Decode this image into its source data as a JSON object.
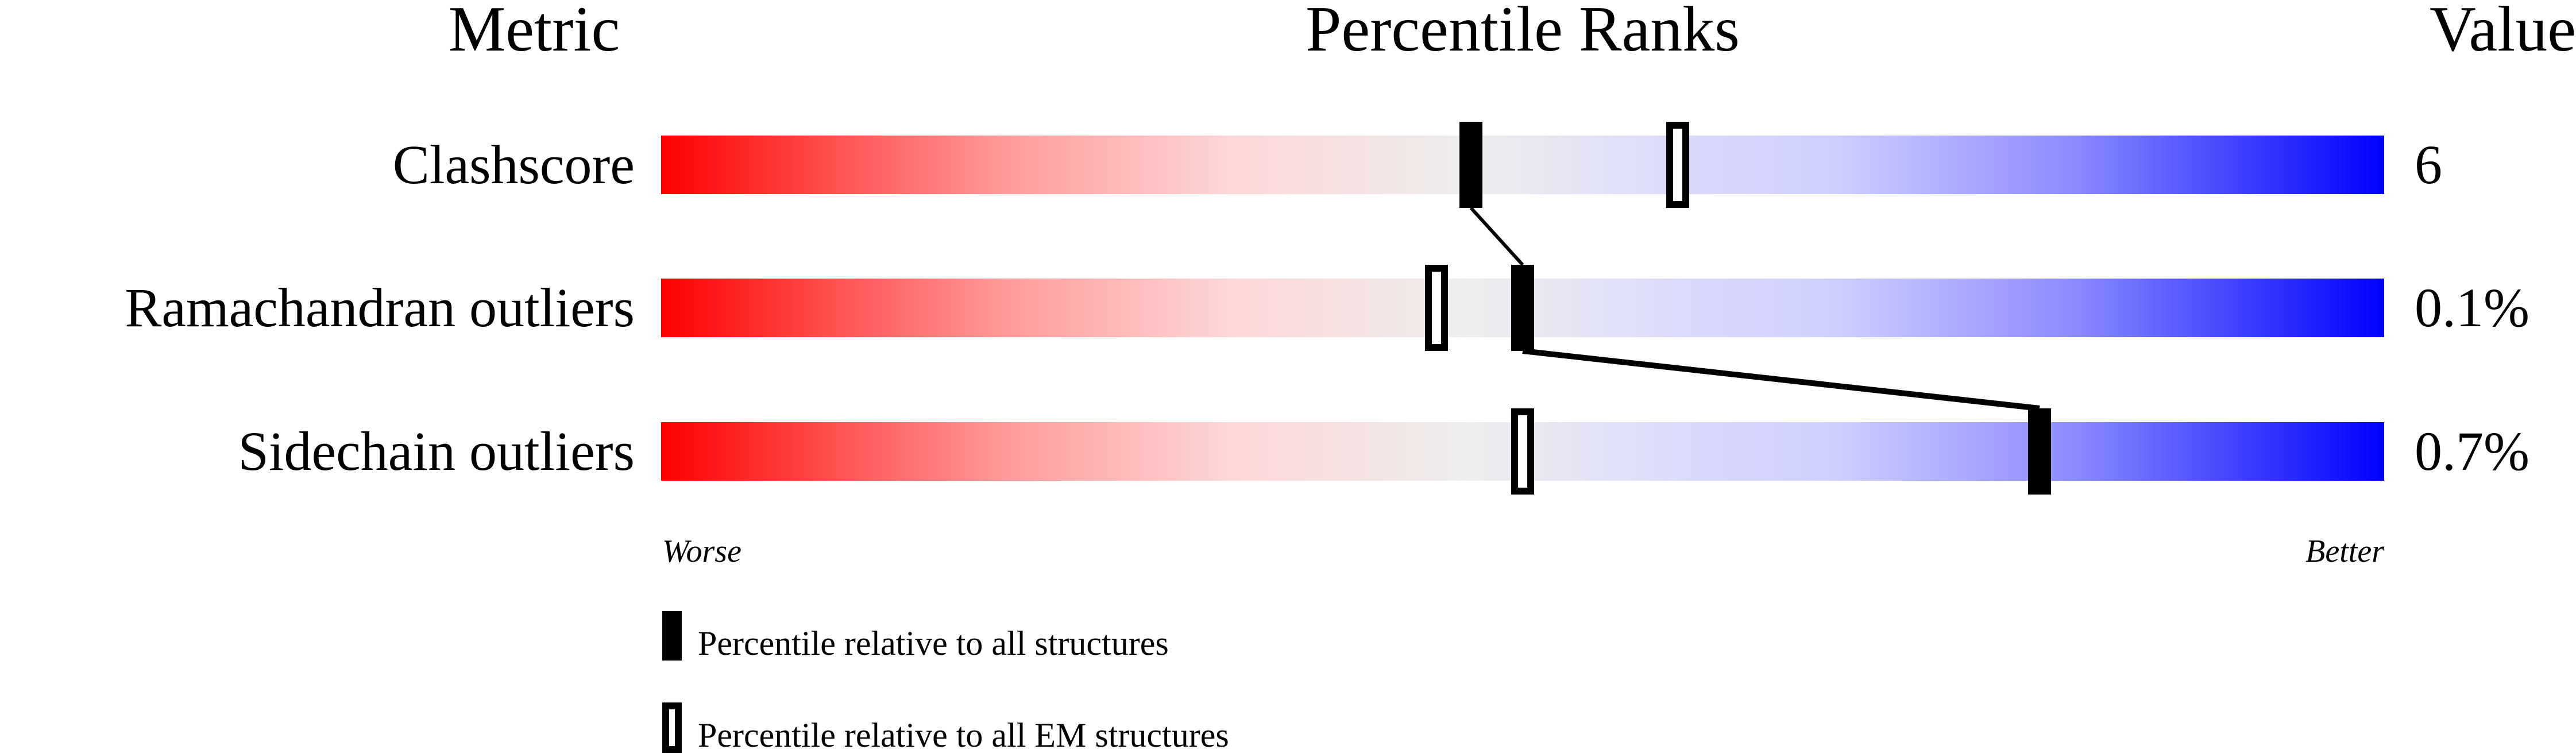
{
  "chart_data": {
    "type": "percentile-slider",
    "headers": {
      "metric": "Metric",
      "ranks": "Percentile Ranks",
      "value": "Value"
    },
    "xlim": [
      0,
      100
    ],
    "axis_labels": {
      "left": "Worse",
      "right": "Better"
    },
    "rows": [
      {
        "metric": "Clashscore",
        "value": "6",
        "percentile_all": 47,
        "percentile_em": 59
      },
      {
        "metric": "Ramachandran outliers",
        "value": "0.1%",
        "percentile_all": 50,
        "percentile_em": 45
      },
      {
        "metric": "Sidechain outliers",
        "value": "0.7%",
        "percentile_all": 80,
        "percentile_em": 50
      }
    ],
    "legend": [
      {
        "marker": "filled",
        "label": "Percentile relative to all structures"
      },
      {
        "marker": "open",
        "label": "Percentile relative to all EM structures"
      }
    ],
    "colors": {
      "worse": "#ff0000",
      "middle": "#eeeeee",
      "better": "#0000ff",
      "marker": "#000000"
    }
  }
}
